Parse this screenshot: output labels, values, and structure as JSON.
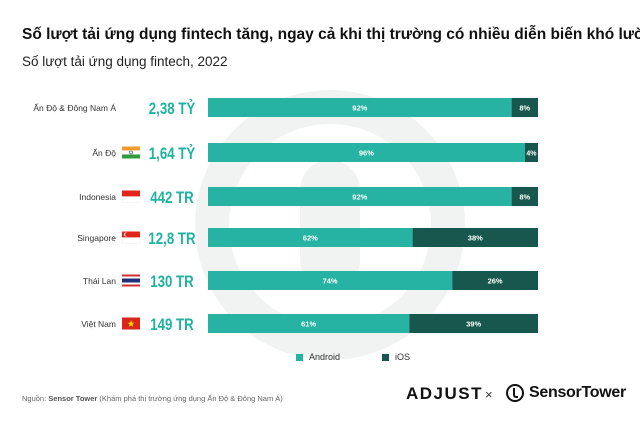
{
  "title": "Số lượt tải ứng dụng fintech tăng, ngay cả khi thị trường có nhiều diễn biến khó lường",
  "subtitle": "Số lượt tải ứng dụng fintech, 2022",
  "colors": {
    "android": "#26b3a3",
    "ios": "#17574e",
    "total": "#1fb3a0",
    "watermark": "#f1f3f3"
  },
  "chart_data": {
    "type": "bar",
    "orientation": "horizontal",
    "stacked": true,
    "percent_stacked": true,
    "categories": [
      "Ấn Độ & Đông Nam Á",
      "Ấn Độ",
      "Indonesia",
      "Singapore",
      "Thái Lan",
      "Việt Nam"
    ],
    "totals": [
      "2,38 TỶ",
      "1,64 TỶ",
      "442 TR",
      "12,8 TR",
      "130 TR",
      "149 TR"
    ],
    "series": [
      {
        "name": "Android",
        "values": [
          92,
          96,
          92,
          62,
          74,
          61
        ],
        "labels": [
          "92%",
          "96%",
          "92%",
          "62%",
          "74%",
          "61%"
        ]
      },
      {
        "name": "iOS",
        "values": [
          8,
          4,
          8,
          38,
          26,
          39
        ],
        "labels": [
          "8%",
          "4%",
          "8%",
          "38%",
          "26%",
          "39%"
        ]
      }
    ],
    "xlim": [
      0,
      100
    ],
    "legend_position": "bottom-center"
  },
  "flags": [
    "none",
    "india-flag-icon",
    "indonesia-flag-icon",
    "singapore-flag-icon",
    "thailand-flag-icon",
    "vietnam-flag-icon"
  ],
  "source": {
    "label": "Nguồn:",
    "name": "Sensor Tower",
    "note": "(Khám phá thị trường ứng dụng Ấn Độ & Đông Nam Á)"
  },
  "logos": {
    "adjust": "ADJUST",
    "times": "×",
    "sensortower": "SensorTower"
  }
}
